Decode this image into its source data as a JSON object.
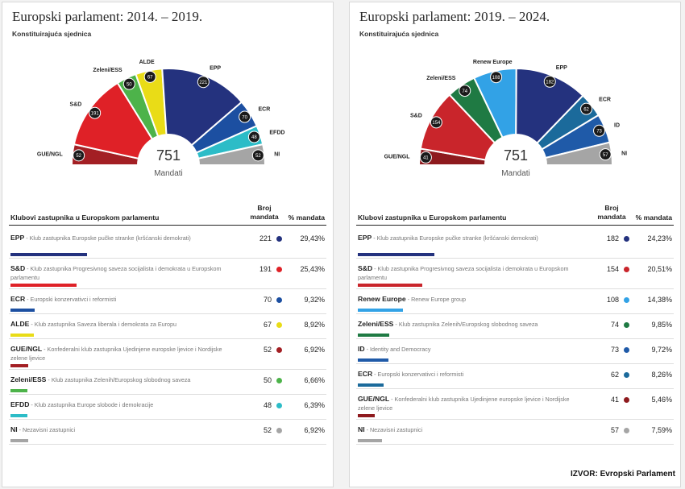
{
  "source": "IZVOR: Evropski Parlament",
  "chart_data": [
    {
      "type": "pie",
      "title": "Europski parlament: 2014. – 2019.",
      "subtitle": "Konstituirajuća sjednica",
      "total": "751",
      "total_label": "Mandati",
      "table_header": {
        "group": "Klubovi zastupnika u Europskom parlamentu",
        "seats": "Broj mandata",
        "pct": "% mandata"
      },
      "groups": [
        {
          "abbr": "GUE/NGL",
          "seats": 52,
          "pct": "6,92%",
          "color": "#a31f24",
          "description": "Konfederalni klub zastupnika Ujedinjene europske ljevice i Nordijske zelene ljevice"
        },
        {
          "abbr": "S&D",
          "seats": 191,
          "pct": "25,43%",
          "color": "#df2127",
          "description": "Klub zastupnika Progresivnog saveza socijalista i demokrata u Europskom parlamentu"
        },
        {
          "abbr": "Zeleni/ESS",
          "seats": 50,
          "pct": "6,66%",
          "color": "#4db34a",
          "description": "Klub zastupnika Zelenih/Europskog slobodnog saveza"
        },
        {
          "abbr": "ALDE",
          "seats": 67,
          "pct": "8,92%",
          "color": "#e9dc17",
          "description": "Klub zastupnika Saveza liberala i demokrata za Europu"
        },
        {
          "abbr": "EPP",
          "seats": 221,
          "pct": "29,43%",
          "color": "#24327e",
          "description": "Klub zastupnika Europske pučke stranke (kršćanski demokrati)"
        },
        {
          "abbr": "ECR",
          "seats": 70,
          "pct": "9,32%",
          "color": "#1c4fa1",
          "description": "Europski konzervativci i reformisti"
        },
        {
          "abbr": "EFDD",
          "seats": 48,
          "pct": "6,39%",
          "color": "#2cbcc7",
          "description": "Klub zastupnika Europe slobode i demokracije"
        },
        {
          "abbr": "NI",
          "seats": 52,
          "pct": "6,92%",
          "color": "#a5a5a5",
          "description": "Nezavisni zastupnici"
        }
      ],
      "table_order": [
        "EPP",
        "S&D",
        "ECR",
        "ALDE",
        "GUE/NGL",
        "Zeleni/ESS",
        "EFDD",
        "NI"
      ]
    },
    {
      "type": "pie",
      "title": "Europski parlament: 2019. – 2024.",
      "subtitle": "Konstituirajuća sjednica",
      "total": "751",
      "total_label": "Mandati",
      "table_header": {
        "group": "Klubovi zastupnika u Europskom parlamentu",
        "seats": "Broj mandata",
        "pct": "% mandata"
      },
      "groups": [
        {
          "abbr": "GUE/NGL",
          "seats": 41,
          "pct": "5,46%",
          "color": "#8e1a1e",
          "description": "Konfederalni klub zastupnika Ujedinjene europske ljevice i Nordijske zelene ljevice"
        },
        {
          "abbr": "S&D",
          "seats": 154,
          "pct": "20,51%",
          "color": "#c9252b",
          "description": "Klub zastupnika Progresivnog saveza socijalista i demokrata u Europskom parlamentu"
        },
        {
          "abbr": "Zeleni/ESS",
          "seats": 74,
          "pct": "9,85%",
          "color": "#1f7a43",
          "description": "Klub zastupnika Zelenih/Europskog slobodnog saveza"
        },
        {
          "abbr": "Renew Europe",
          "seats": 108,
          "pct": "14,38%",
          "color": "#32a2e6",
          "description": "Renew Europe group"
        },
        {
          "abbr": "EPP",
          "seats": 182,
          "pct": "24,23%",
          "color": "#24327e",
          "description": "Klub zastupnika Europske pučke stranke (kršćanski demokrati)"
        },
        {
          "abbr": "ECR",
          "seats": 62,
          "pct": "8,26%",
          "color": "#1b6a9b",
          "description": "Europski konzervativci i reformisti"
        },
        {
          "abbr": "ID",
          "seats": 73,
          "pct": "9,72%",
          "color": "#1f5aa8",
          "description": "Identity and Democracy"
        },
        {
          "abbr": "NI",
          "seats": 57,
          "pct": "7,59%",
          "color": "#a5a5a5",
          "description": "Nezavisni zastupnici"
        }
      ],
      "table_order": [
        "EPP",
        "S&D",
        "Renew Europe",
        "Zeleni/ESS",
        "ID",
        "ECR",
        "GUE/NGL",
        "NI"
      ]
    }
  ]
}
